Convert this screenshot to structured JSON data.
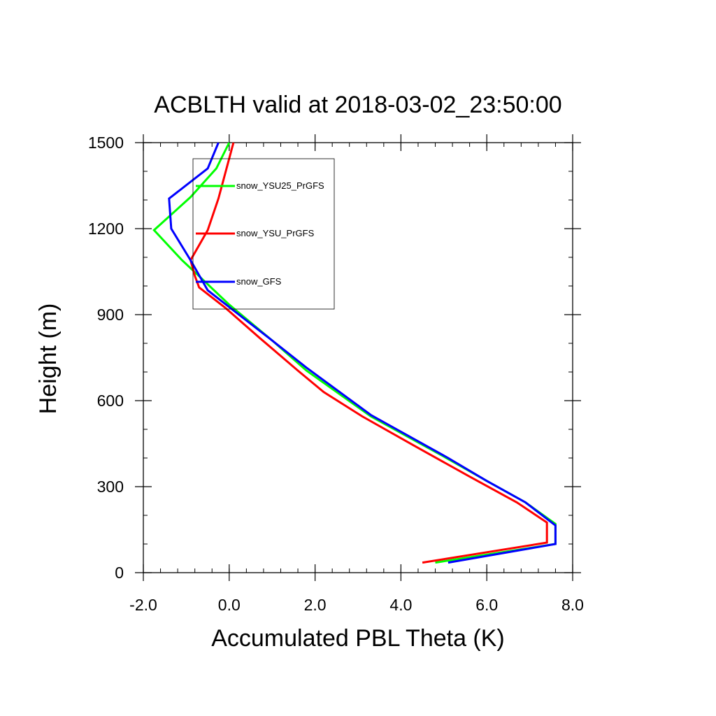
{
  "chart_data": {
    "type": "line",
    "title": "ACBLTH valid at 2018-03-02_23:50:00",
    "xlabel": "Accumulated PBL Theta (K)",
    "ylabel": "Height (m)",
    "xlim": [
      -2.0,
      8.0
    ],
    "ylim": [
      0,
      1500
    ],
    "x_ticks": [
      {
        "value": -2.0,
        "label": "-2.0"
      },
      {
        "value": 0.0,
        "label": "0.0"
      },
      {
        "value": 2.0,
        "label": "2.0"
      },
      {
        "value": 4.0,
        "label": "4.0"
      },
      {
        "value": 6.0,
        "label": "6.0"
      },
      {
        "value": 8.0,
        "label": "8.0"
      }
    ],
    "y_ticks": [
      {
        "value": 0,
        "label": "0"
      },
      {
        "value": 300,
        "label": "300"
      },
      {
        "value": 600,
        "label": "600"
      },
      {
        "value": 900,
        "label": "900"
      },
      {
        "value": 1200,
        "label": "1200"
      },
      {
        "value": 1500,
        "label": "1500"
      }
    ],
    "x_minor_step": 0.4,
    "y_minor_step": 100,
    "grid": false,
    "legend_position": "upper-left inside plot",
    "series": [
      {
        "name": "snow_YSU25_PrGFS",
        "color": "#00ff00",
        "points": [
          [
            4.8,
            35
          ],
          [
            7.6,
            100
          ],
          [
            7.6,
            170
          ],
          [
            6.9,
            245
          ],
          [
            6.0,
            320
          ],
          [
            5.0,
            405
          ],
          [
            3.3,
            545
          ],
          [
            1.8,
            705
          ],
          [
            1.0,
            810
          ],
          [
            0.0,
            935
          ],
          [
            -0.6,
            1020
          ],
          [
            -1.1,
            1090
          ],
          [
            -1.75,
            1195
          ],
          [
            -0.9,
            1310
          ],
          [
            -0.3,
            1410
          ],
          [
            0.0,
            1500
          ]
        ]
      },
      {
        "name": "snow_YSU_PrGFS",
        "color": "#ff0000",
        "points": [
          [
            4.5,
            35
          ],
          [
            7.4,
            105
          ],
          [
            7.4,
            175
          ],
          [
            6.7,
            245
          ],
          [
            5.6,
            335
          ],
          [
            4.4,
            435
          ],
          [
            3.1,
            545
          ],
          [
            2.2,
            630
          ],
          [
            1.6,
            705
          ],
          [
            0.7,
            820
          ],
          [
            -0.1,
            925
          ],
          [
            -0.7,
            995
          ],
          [
            -0.8,
            1035
          ],
          [
            -0.9,
            1090
          ],
          [
            -0.5,
            1195
          ],
          [
            -0.25,
            1305
          ],
          [
            0.1,
            1500
          ]
        ]
      },
      {
        "name": "snow_GFS",
        "color": "#0000ff",
        "points": [
          [
            5.1,
            35
          ],
          [
            7.6,
            100
          ],
          [
            7.6,
            165
          ],
          [
            6.9,
            245
          ],
          [
            6.0,
            320
          ],
          [
            5.1,
            400
          ],
          [
            3.3,
            550
          ],
          [
            1.8,
            715
          ],
          [
            1.0,
            810
          ],
          [
            -0.5,
            985
          ],
          [
            -0.9,
            1090
          ],
          [
            -1.35,
            1200
          ],
          [
            -1.4,
            1305
          ],
          [
            -0.5,
            1410
          ],
          [
            -0.25,
            1500
          ]
        ]
      }
    ]
  }
}
